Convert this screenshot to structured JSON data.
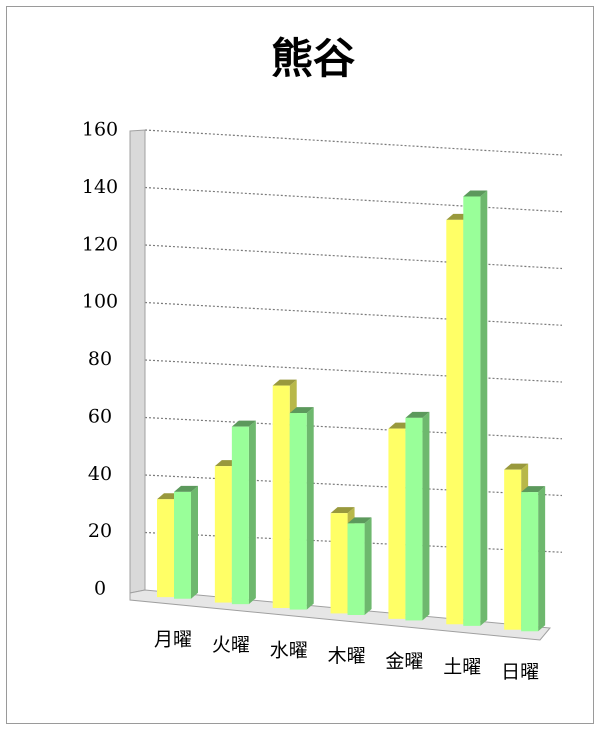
{
  "chart_data": {
    "type": "bar",
    "title": "熊谷",
    "categories": [
      "月曜",
      "火曜",
      "水曜",
      "木曜",
      "金曜",
      "土曜",
      "日曜"
    ],
    "series": [
      {
        "values": [
          34,
          47,
          76,
          34,
          64,
          135,
          53
        ],
        "color": "#ffff66"
      },
      {
        "values": [
          37,
          61,
          67,
          31,
          68,
          143,
          46
        ],
        "color": "#99ff99"
      }
    ],
    "ylim": [
      0,
      160
    ],
    "yticks": [
      0,
      20,
      40,
      60,
      80,
      100,
      120,
      140,
      160
    ],
    "grid": true,
    "grid_style": "dotted",
    "projection": "3d-perspective",
    "legend": false,
    "xlabel": "",
    "ylabel": ""
  }
}
